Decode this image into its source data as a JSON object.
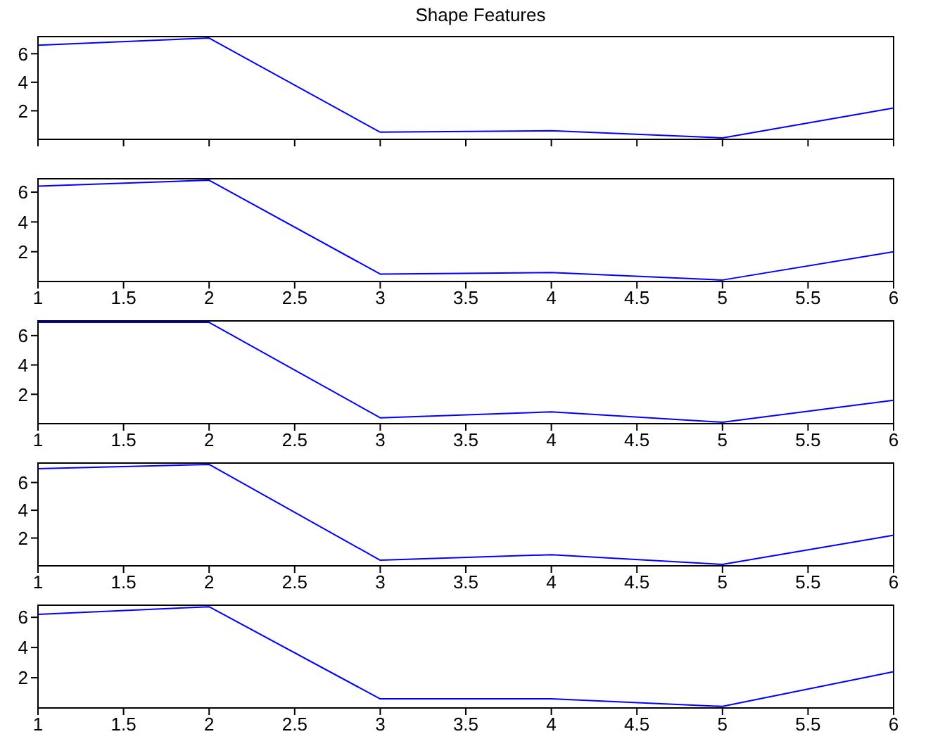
{
  "chart_data": [
    {
      "type": "line",
      "title": "Shape Features",
      "x": [
        1,
        2,
        3,
        4,
        5,
        6
      ],
      "series": [
        {
          "color": "#0000ff",
          "values": [
            6.6,
            7.1,
            0.5,
            0.6,
            0.1,
            2.2
          ]
        }
      ],
      "xlim": [
        1,
        6
      ],
      "xticks": [
        1,
        1.5,
        2,
        2.5,
        3,
        3.5,
        4,
        4.5,
        5,
        5.5,
        6
      ],
      "ylim": [
        0,
        7.2
      ],
      "yticks": [
        2,
        4,
        6
      ],
      "tick_labels": "y",
      "grid": false,
      "legend": false
    },
    {
      "type": "line",
      "x": [
        1,
        2,
        3,
        4,
        5,
        6
      ],
      "series": [
        {
          "color": "#0000ff",
          "values": [
            6.4,
            6.8,
            0.5,
            0.6,
            0.1,
            2.0
          ]
        }
      ],
      "xlim": [
        1,
        6
      ],
      "xticks": [
        1,
        1.5,
        2,
        2.5,
        3,
        3.5,
        4,
        4.5,
        5,
        5.5,
        6
      ],
      "ylim": [
        0,
        6.9
      ],
      "yticks": [
        2,
        4,
        6
      ],
      "grid": false,
      "legend": false
    },
    {
      "type": "line",
      "x": [
        1,
        2,
        3,
        4,
        5,
        6
      ],
      "series": [
        {
          "color": "#0000ff",
          "values": [
            6.9,
            6.9,
            0.4,
            0.8,
            0.1,
            1.6
          ]
        }
      ],
      "xlim": [
        1,
        6
      ],
      "xticks": [
        1,
        1.5,
        2,
        2.5,
        3,
        3.5,
        4,
        4.5,
        5,
        5.5,
        6
      ],
      "ylim": [
        0,
        7.0
      ],
      "yticks": [
        2,
        4,
        6
      ],
      "grid": false,
      "legend": false
    },
    {
      "type": "line",
      "x": [
        1,
        2,
        3,
        4,
        5,
        6
      ],
      "series": [
        {
          "color": "#0000ff",
          "values": [
            7.0,
            7.3,
            0.4,
            0.8,
            0.1,
            2.2
          ]
        }
      ],
      "xlim": [
        1,
        6
      ],
      "xticks": [
        1,
        1.5,
        2,
        2.5,
        3,
        3.5,
        4,
        4.5,
        5,
        5.5,
        6
      ],
      "ylim": [
        0,
        7.4
      ],
      "yticks": [
        2,
        4,
        6
      ],
      "grid": false,
      "legend": false
    },
    {
      "type": "line",
      "x": [
        1,
        2,
        3,
        4,
        5,
        6
      ],
      "series": [
        {
          "color": "#0000ff",
          "values": [
            6.2,
            6.7,
            0.6,
            0.6,
            0.1,
            2.4
          ]
        }
      ],
      "xlim": [
        1,
        6
      ],
      "xticks": [
        1,
        1.5,
        2,
        2.5,
        3,
        3.5,
        4,
        4.5,
        5,
        5.5,
        6
      ],
      "ylim": [
        0,
        6.8
      ],
      "yticks": [
        2,
        4,
        6
      ],
      "grid": false,
      "legend": false
    }
  ]
}
